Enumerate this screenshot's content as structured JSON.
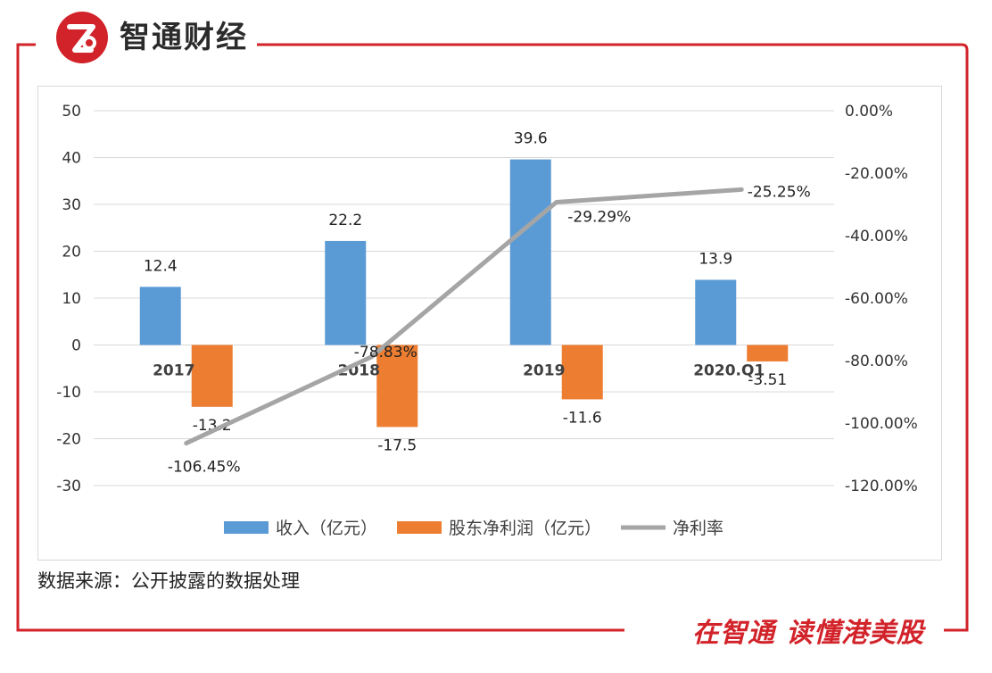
{
  "brand": {
    "name": "智通财经",
    "logo_icon": "zhitong-logo-icon",
    "accent_color": "#d2232a"
  },
  "source_note": "数据来源：公开披露的数据处理",
  "slogan": {
    "part1": "在智通",
    "part2": "读懂港美股"
  },
  "chart_data": {
    "type": "bar",
    "title": "",
    "categories": [
      "2017",
      "2018",
      "2019",
      "2020.Q1"
    ],
    "series": [
      {
        "name": "收入（亿元）",
        "kind": "bar",
        "axis": "left",
        "color": "#5b9bd5",
        "values": [
          12.4,
          22.2,
          39.6,
          13.9
        ],
        "labels": [
          "12.4",
          "22.2",
          "39.6",
          "13.9"
        ]
      },
      {
        "name": "股东净利润（亿元）",
        "kind": "bar",
        "axis": "left",
        "color": "#ed7d31",
        "values": [
          -13.2,
          -17.5,
          -11.6,
          -3.51
        ],
        "labels": [
          "-13.2",
          "-17.5",
          "-11.6",
          "-3.51"
        ]
      },
      {
        "name": "净利率",
        "kind": "line",
        "axis": "right",
        "color": "#a5a5a5",
        "values": [
          -106.45,
          -78.83,
          -29.29,
          -25.25
        ],
        "labels": [
          "-106.45%",
          "-78.83%",
          "-29.29%",
          "-25.25%"
        ]
      }
    ],
    "y_left": {
      "min": -30,
      "max": 50,
      "step": 10,
      "ticks": [
        "50",
        "40",
        "30",
        "20",
        "10",
        "0",
        "-10",
        "-20",
        "-30"
      ]
    },
    "y_right": {
      "min": -120,
      "max": 0,
      "step": 20,
      "ticks": [
        "0.00%",
        "-20.00%",
        "-40.00%",
        "-60.00%",
        "-80.00%",
        "-100.00%",
        "-120.00%"
      ]
    },
    "grid": true,
    "legend_position": "bottom"
  }
}
